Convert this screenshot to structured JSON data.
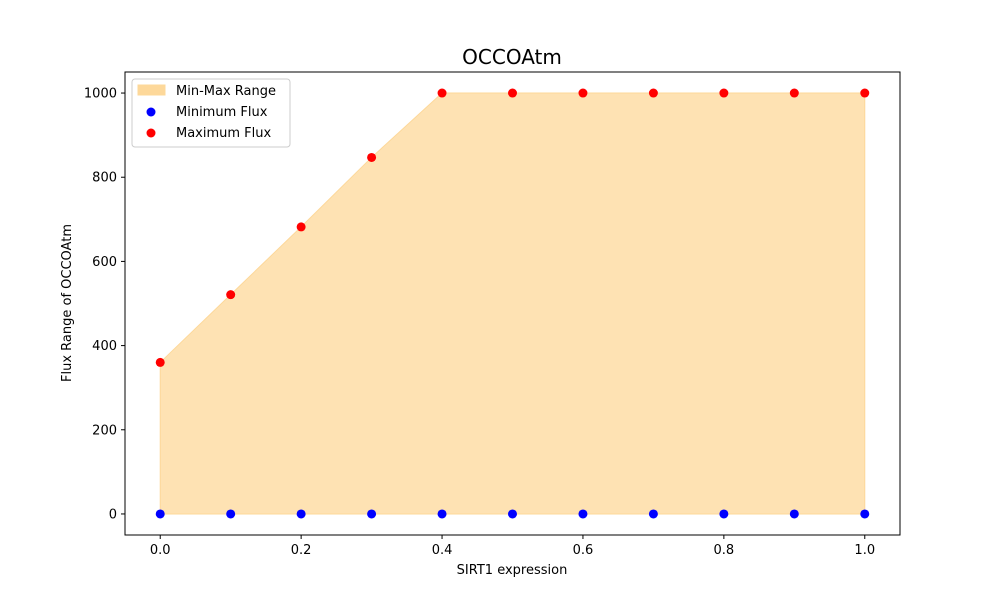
{
  "chart_data": {
    "type": "scatter",
    "title": "OCCOAtm",
    "xlabel": "SIRT1 expression",
    "ylabel": "Flux Range of OCCOAtm",
    "xlim": [
      -0.05,
      1.05
    ],
    "ylim": [
      -50,
      1050
    ],
    "x": [
      0.0,
      0.1,
      0.2,
      0.3,
      0.4,
      0.5,
      0.6,
      0.7,
      0.8,
      0.9,
      1.0
    ],
    "xticks": [
      0.0,
      0.2,
      0.4,
      0.6,
      0.8,
      1.0
    ],
    "xtick_labels": [
      "0.0",
      "0.2",
      "0.4",
      "0.6",
      "0.8",
      "1.0"
    ],
    "yticks": [
      0,
      200,
      400,
      600,
      800,
      1000
    ],
    "ytick_labels": [
      "0",
      "200",
      "400",
      "600",
      "800",
      "1000"
    ],
    "series": [
      {
        "name": "Min-Max Range",
        "kind": "fill_between",
        "color": "#fdd89a"
      },
      {
        "name": "Minimum Flux",
        "kind": "scatter",
        "color": "#0000ff",
        "values": [
          0,
          0,
          0,
          0,
          0,
          0,
          0,
          0,
          0,
          0,
          0
        ]
      },
      {
        "name": "Maximum Flux",
        "kind": "scatter",
        "color": "#ff0000",
        "values": [
          360,
          521,
          682,
          847,
          1000,
          1000,
          1000,
          1000,
          1000,
          1000,
          1000
        ]
      }
    ],
    "grid": false,
    "legend_position": "upper left"
  }
}
